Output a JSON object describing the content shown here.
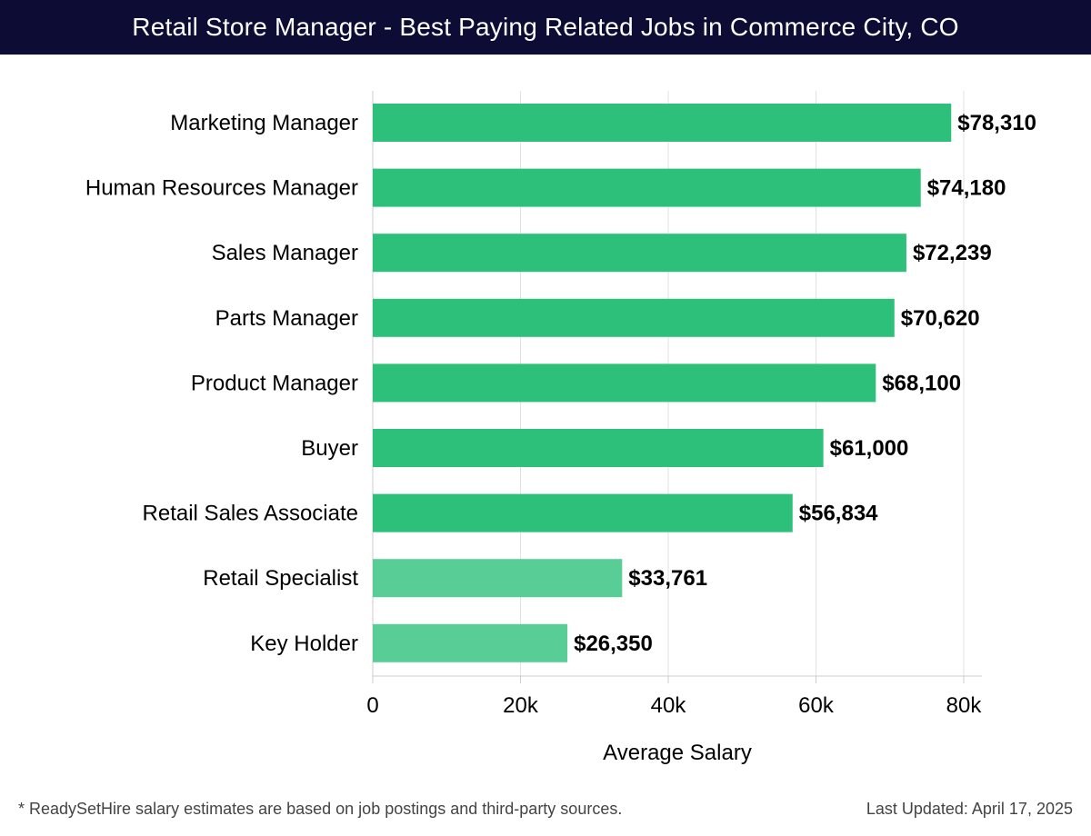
{
  "header": {
    "title": "Retail Store Manager - Best Paying Related Jobs in Commerce City, CO"
  },
  "footer": {
    "note": "* ReadySetHire salary estimates are based on job postings and third-party sources.",
    "updated": "Last Updated: April 17, 2025"
  },
  "colors": {
    "header_bg": "#0c0c35",
    "bar_dark": "#2dc07a",
    "bar_light": "#58cd95",
    "grid": "#e2e2e2",
    "axis": "#cccccc",
    "text": "#000000"
  },
  "chart_data": {
    "type": "bar",
    "orientation": "horizontal",
    "title": "Retail Store Manager - Best Paying Related Jobs in Commerce City, CO",
    "xlabel": "Average Salary",
    "ylabel": "",
    "xlim": [
      0,
      80000
    ],
    "xticks": [
      0,
      20000,
      40000,
      60000,
      80000
    ],
    "xtick_labels": [
      "0",
      "20k",
      "40k",
      "60k",
      "80k"
    ],
    "grid": true,
    "categories": [
      "Marketing Manager",
      "Human Resources Manager",
      "Sales Manager",
      "Parts Manager",
      "Product Manager",
      "Buyer",
      "Retail Sales Associate",
      "Retail Specialist",
      "Key Holder"
    ],
    "values": [
      78310,
      74180,
      72239,
      70620,
      68100,
      61000,
      56834,
      33761,
      26350
    ],
    "value_labels": [
      "$78,310",
      "$74,180",
      "$72,239",
      "$70,620",
      "$68,100",
      "$61,000",
      "$56,834",
      "$33,761",
      "$26,350"
    ]
  }
}
